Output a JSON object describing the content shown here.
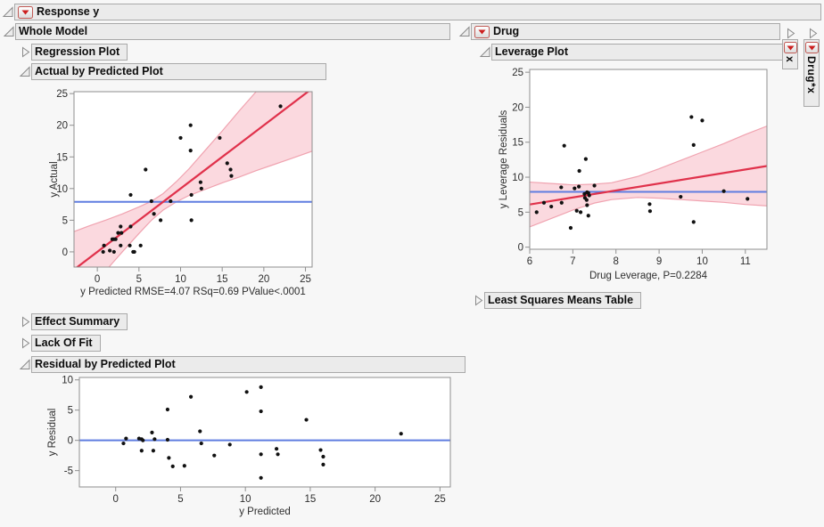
{
  "titles": {
    "response": "Response y",
    "whole_model": "Whole Model",
    "regression_plot": "Regression Plot",
    "actual_by_predicted": "Actual by Predicted Plot",
    "effect_summary": "Effect Summary",
    "lack_of_fit": "Lack Of Fit",
    "residual_by_predicted": "Residual by Predicted Plot",
    "drug": "Drug",
    "leverage_plot": "Leverage Plot",
    "least_squares_means": "Least Squares Means Table",
    "tab_x": "x",
    "tab_drug_x": "Drug*x"
  },
  "stats": {
    "rmse": "4.07",
    "rsq": "0.69",
    "pvalue": "<.0001",
    "drug_leverage_p": "0.2284"
  },
  "colors": {
    "fit_line": "#e0314b",
    "band_fill": "#fbd9df",
    "band_edge": "#f0a3b0",
    "mean_line": "#5f7de0",
    "point": "#111111",
    "axis": "#8f8f8f",
    "tick_text": "#2e2e2e",
    "header_bg": "#ebebeb",
    "header_border": "#a9a9a9",
    "plot_bg": "#ffffff"
  },
  "chart_data": [
    {
      "id": "actual_by_predicted",
      "type": "scatter",
      "title": "Actual by Predicted Plot",
      "xlabel": "y Predicted RMSE=4.07 RSq=0.69 PValue<.0001",
      "ylabel": "y Actual",
      "xlim": [
        -2.8,
        25.8
      ],
      "ylim": [
        -2.4,
        25.3
      ],
      "xticks": [
        0,
        5,
        10,
        15,
        20,
        25
      ],
      "yticks": [
        0,
        5,
        10,
        15,
        20,
        25
      ],
      "points": [
        [
          0.7,
          0
        ],
        [
          0.8,
          1
        ],
        [
          1.5,
          0.2
        ],
        [
          1.8,
          2
        ],
        [
          2,
          2
        ],
        [
          2,
          0
        ],
        [
          2.2,
          2
        ],
        [
          2.5,
          3
        ],
        [
          2.8,
          4
        ],
        [
          2.8,
          1
        ],
        [
          2.9,
          3
        ],
        [
          3.9,
          1
        ],
        [
          4,
          4
        ],
        [
          4,
          9
        ],
        [
          4.3,
          0
        ],
        [
          4.45,
          0
        ],
        [
          5.2,
          1
        ],
        [
          5.8,
          13
        ],
        [
          6.5,
          8
        ],
        [
          6.8,
          6
        ],
        [
          7.6,
          5
        ],
        [
          8.8,
          8
        ],
        [
          10,
          18
        ],
        [
          11.2,
          20
        ],
        [
          11.2,
          16
        ],
        [
          11.3,
          9
        ],
        [
          11.3,
          5
        ],
        [
          12.4,
          11
        ],
        [
          12.5,
          10
        ],
        [
          14.7,
          18
        ],
        [
          15.6,
          14
        ],
        [
          16,
          13
        ],
        [
          16.1,
          12
        ],
        [
          22,
          23
        ]
      ],
      "fit_line": [
        [
          -2.8,
          -2.8
        ],
        [
          25.8,
          25.8
        ]
      ],
      "mean_line": 7.9,
      "band": {
        "x": [
          -2.8,
          -1,
          1,
          3,
          5,
          6.5,
          7.9,
          9.5,
          11,
          13,
          15,
          17,
          19,
          21,
          23,
          25.8
        ],
        "upper": [
          3.2,
          4.1,
          5.0,
          6.0,
          7.1,
          8.0,
          9.2,
          11.1,
          13.1,
          16.1,
          19.1,
          22.2,
          25.2,
          28.3,
          31.4,
          35.7
        ],
        "lower": [
          -8.8,
          -6.1,
          -3.0,
          0.0,
          2.9,
          5.0,
          6.6,
          7.9,
          8.9,
          9.9,
          10.9,
          11.8,
          12.8,
          13.7,
          14.6,
          15.9
        ]
      }
    },
    {
      "id": "leverage",
      "type": "scatter",
      "title": "Leverage Plot",
      "xlabel": "Drug Leverage, P=0.2284",
      "ylabel": "y Leverage Residuals",
      "xlim": [
        6,
        11.5
      ],
      "ylim": [
        -0.3,
        25.4
      ],
      "xticks": [
        6,
        7,
        8,
        9,
        10,
        11
      ],
      "yticks": [
        0,
        5,
        10,
        15,
        20,
        25
      ],
      "points": [
        [
          6.16,
          5.0
        ],
        [
          6.33,
          6.35
        ],
        [
          6.5,
          5.8
        ],
        [
          6.73,
          8.55
        ],
        [
          6.74,
          6.35
        ],
        [
          6.8,
          14.5
        ],
        [
          6.95,
          2.75
        ],
        [
          7.04,
          8.4
        ],
        [
          7.09,
          5.2
        ],
        [
          7.14,
          8.65
        ],
        [
          7.15,
          10.9
        ],
        [
          7.18,
          5.0
        ],
        [
          7.27,
          7.6
        ],
        [
          7.28,
          7.05
        ],
        [
          7.3,
          12.6
        ],
        [
          7.32,
          6.75
        ],
        [
          7.33,
          7.85
        ],
        [
          7.33,
          6.0
        ],
        [
          7.36,
          7.75
        ],
        [
          7.36,
          4.5
        ],
        [
          7.38,
          7.4
        ],
        [
          7.5,
          8.8
        ],
        [
          8.78,
          6.15
        ],
        [
          8.79,
          5.15
        ],
        [
          9.5,
          7.2
        ],
        [
          9.75,
          18.6
        ],
        [
          9.8,
          14.6
        ],
        [
          9.8,
          3.6
        ],
        [
          10.0,
          18.1
        ],
        [
          10.5,
          8.0
        ],
        [
          11.05,
          6.9
        ]
      ],
      "fit_line": [
        [
          6,
          6.1
        ],
        [
          11.5,
          11.6
        ]
      ],
      "mean_line": 7.9,
      "band": {
        "x": [
          6,
          6.5,
          7,
          7.5,
          7.9,
          8.5,
          9,
          9.5,
          10,
          10.5,
          11,
          11.5
        ],
        "upper": [
          9.3,
          9.1,
          8.9,
          9.0,
          9.2,
          10.1,
          11.2,
          12.4,
          13.6,
          14.8,
          16.1,
          17.3
        ],
        "lower": [
          2.9,
          4.1,
          5.3,
          6.3,
          6.8,
          7.1,
          7.0,
          6.8,
          6.6,
          6.4,
          6.1,
          5.9
        ]
      }
    },
    {
      "id": "residual",
      "type": "scatter",
      "title": "Residual by Predicted Plot",
      "xlabel": "y Predicted",
      "ylabel": "y Residual",
      "xlim": [
        -2.8,
        25.8
      ],
      "ylim": [
        -7.7,
        10.4
      ],
      "xticks": [
        0,
        5,
        10,
        15,
        20,
        25
      ],
      "yticks": [
        -5,
        0,
        5,
        10
      ],
      "points": [
        [
          0.6,
          -0.5
        ],
        [
          0.8,
          0.3
        ],
        [
          1.8,
          0.3
        ],
        [
          2.0,
          0.2
        ],
        [
          2.0,
          -1.7
        ],
        [
          2.1,
          0.0
        ],
        [
          2.8,
          1.3
        ],
        [
          2.9,
          -1.7
        ],
        [
          3.0,
          0.2
        ],
        [
          4.0,
          5.1
        ],
        [
          4.0,
          0.1
        ],
        [
          4.1,
          -2.9
        ],
        [
          4.4,
          -4.3
        ],
        [
          5.3,
          -4.2
        ],
        [
          5.8,
          7.2
        ],
        [
          6.5,
          1.5
        ],
        [
          6.6,
          -0.5
        ],
        [
          7.6,
          -2.5
        ],
        [
          8.8,
          -0.7
        ],
        [
          10.1,
          8.0
        ],
        [
          11.2,
          8.8
        ],
        [
          11.2,
          4.8
        ],
        [
          11.2,
          -2.3
        ],
        [
          11.2,
          -6.2
        ],
        [
          12.4,
          -1.4
        ],
        [
          12.5,
          -2.3
        ],
        [
          14.7,
          3.4
        ],
        [
          15.8,
          -1.6
        ],
        [
          16.0,
          -2.7
        ],
        [
          16.0,
          -4.0
        ],
        [
          22.0,
          1.1
        ]
      ],
      "mean_line": 0
    }
  ]
}
